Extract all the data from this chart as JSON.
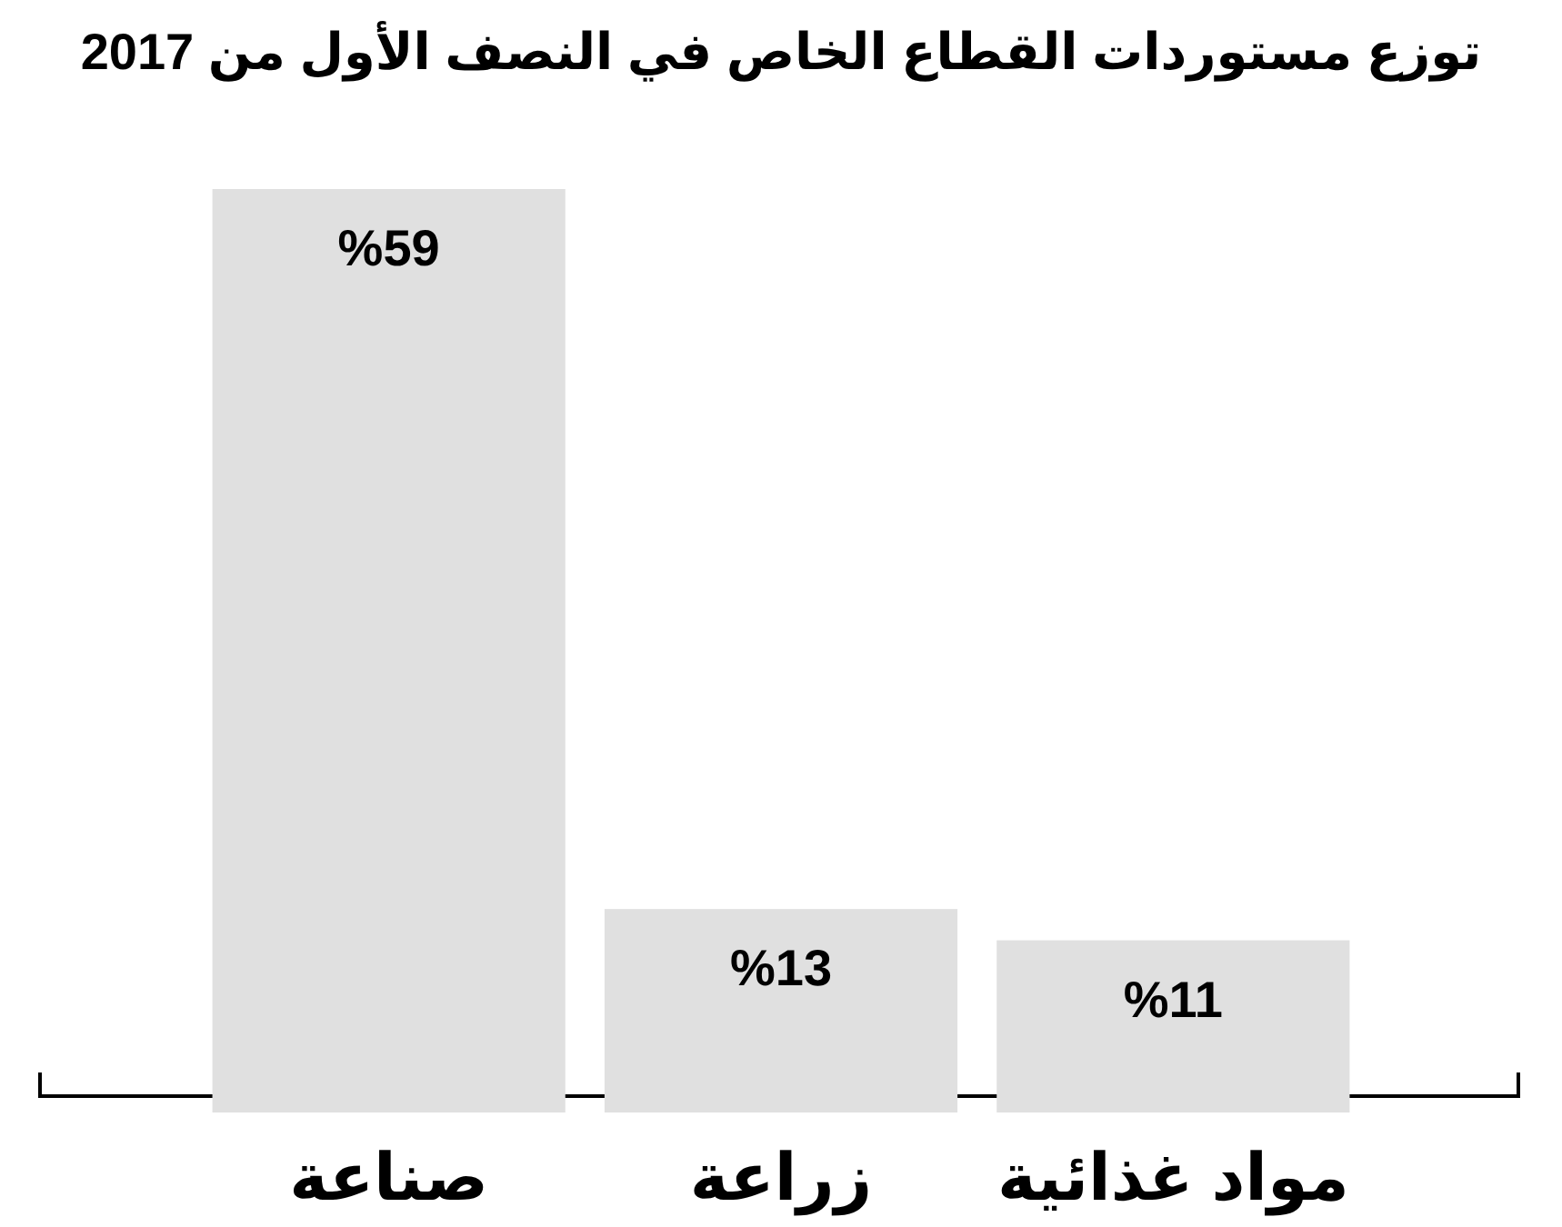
{
  "chart_data": {
    "type": "bar",
    "title": "توزع مستوردات القطاع الخاص في النصف الأول من 2017",
    "categories": [
      "صناعة",
      "زراعة",
      "مواد غذائية"
    ],
    "values": [
      59,
      13,
      11
    ],
    "color": "#e0e0e0",
    "value_labels": [
      "%59",
      "%13",
      "%11"
    ]
  }
}
